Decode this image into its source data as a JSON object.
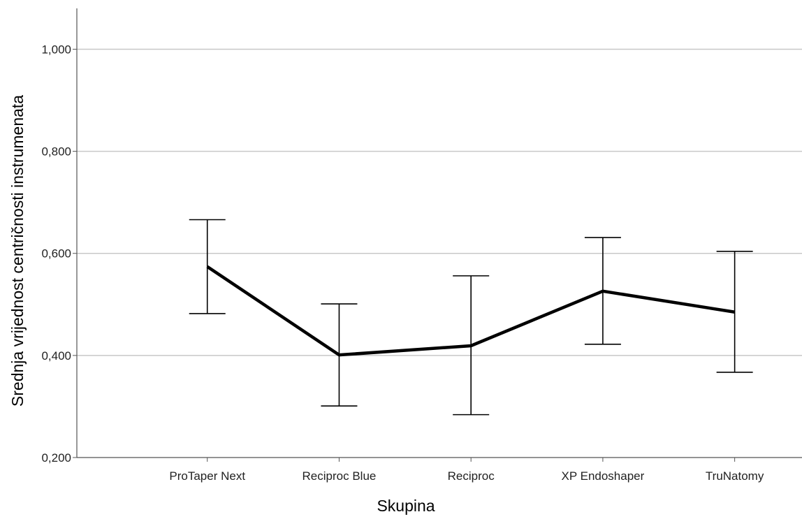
{
  "chart_data": {
    "type": "line",
    "title": "",
    "xlabel": "Skupina",
    "ylabel": "Srednja vrijednost centričnosti instrumenata",
    "categories": [
      "ProTaper Next",
      "Reciproc Blue",
      "Reciproc",
      "XP Endoshaper",
      "TruNatomy"
    ],
    "series": [
      {
        "values": [
          0.574,
          0.401,
          0.419,
          0.526,
          0.485
        ],
        "error_upper": [
          0.666,
          0.501,
          0.556,
          0.631,
          0.604
        ],
        "error_lower": [
          0.482,
          0.301,
          0.284,
          0.422,
          0.367
        ]
      }
    ],
    "yticks": [
      0.2,
      0.4,
      0.6,
      0.8,
      1.0
    ],
    "ytick_labels": [
      "0,200",
      "0,400",
      "0,600",
      "0,800",
      "1,000"
    ],
    "ylim": [
      0.2,
      1.08
    ],
    "grid": "horizontal",
    "legend": "none",
    "colors": {
      "line": "#000000",
      "grid": "#c8c8c8",
      "axis": "#555555"
    }
  }
}
